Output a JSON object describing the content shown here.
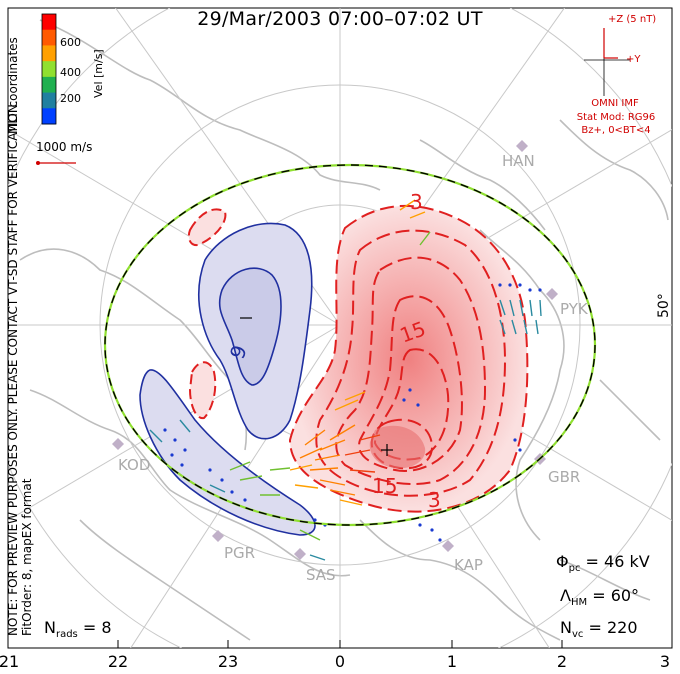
{
  "title": "29/Mar/2003 07:00–07:02 UT",
  "colorbar": {
    "label": "Vel [m/s]",
    "ticks": [
      "600",
      "400",
      "200"
    ],
    "colors": [
      "#ff0000",
      "#ff5a00",
      "#ffa000",
      "#90e030",
      "#20b050",
      "#2080a0",
      "#0040ff"
    ]
  },
  "vector_scale": {
    "label": "1000 m/s"
  },
  "side_notes": {
    "line1": "MLT coordinates",
    "line2": "NOTE: FOR PREVIEW PURPOSES ONLY. PLEASE CONTACT VT-SD STAFF FOR VERIFICATION.",
    "line3": "FitOrder: 8, mapEX format"
  },
  "imf": {
    "z_label": "+Z (5 nT)",
    "y_label": "+Y",
    "source": "OMNI IMF",
    "model": "Stat Mod: RG96",
    "condition": "Bz+, 0<BT<4"
  },
  "latitude_label": "50°",
  "sites": [
    "HAN",
    "PYK",
    "KOD",
    "PGR",
    "SAS",
    "KAP",
    "GBR"
  ],
  "contours": {
    "labels": [
      "3",
      "15",
      "15",
      "3",
      "9"
    ],
    "min_marker": "−",
    "max_marker": "+"
  },
  "stats": {
    "phi_pc": "Φ",
    "phi_pc_sub": "pc",
    "phi_pc_value": " = 46 kV",
    "lambda_hm": "Λ",
    "lambda_hm_sub": "HM",
    "lambda_hm_value": " = 60°",
    "n_vc": "N",
    "n_vc_sub": "vc",
    "n_vc_value": " = 220",
    "n_rads": "N",
    "n_rads_sub": "rads",
    "n_rads_value": " = 8"
  },
  "mlt_ticks": [
    "21",
    "22",
    "23",
    "0",
    "1",
    "2",
    "3"
  ]
}
